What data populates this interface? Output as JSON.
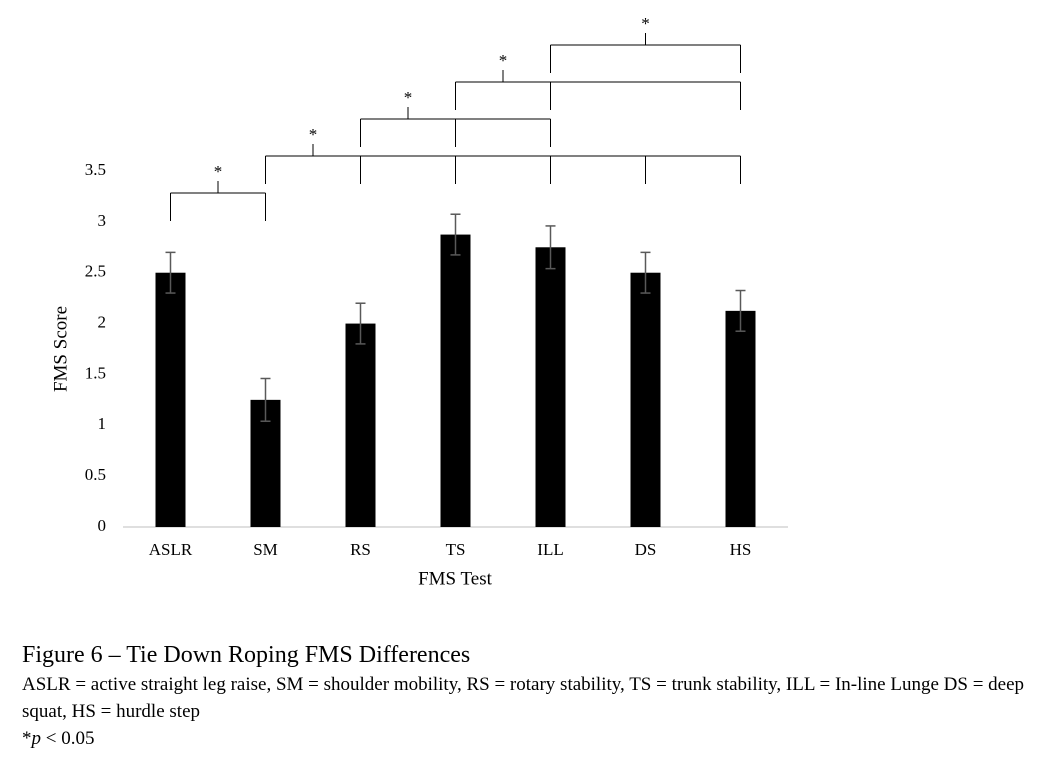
{
  "chart_data": {
    "type": "bar",
    "categories": [
      "ASLR",
      "SM",
      "RS",
      "TS",
      "ILL",
      "DS",
      "HS"
    ],
    "values": [
      2.5,
      1.25,
      2.0,
      2.875,
      2.75,
      2.5,
      2.125
    ],
    "errors": [
      0.2,
      0.21,
      0.2,
      0.2,
      0.21,
      0.2,
      0.2
    ],
    "color": "#000000",
    "error_color": "#595959",
    "ylim": [
      0,
      3.5
    ],
    "yticks": [
      0,
      0.5,
      1,
      1.5,
      2,
      2.5,
      3,
      3.5
    ],
    "grid": false,
    "x_label": "FMS Test",
    "y_label": "FMS Score",
    "significance": [
      {
        "from": 0,
        "to": [
          1
        ],
        "label": "*"
      },
      {
        "from": 1,
        "to": [
          2,
          3,
          4,
          5,
          6
        ],
        "label": "*"
      },
      {
        "from": 2,
        "to": [
          3,
          4
        ],
        "label": "*"
      },
      {
        "from": 3,
        "to": [
          4,
          6
        ],
        "label": "*"
      },
      {
        "from": 4,
        "to": [
          6
        ],
        "label": "*"
      }
    ]
  },
  "caption": {
    "title": "Figure 6 – Tie Down Roping FMS Differences",
    "description": "ASLR = active straight leg raise, SM = shoulder mobility, RS = rotary stability, TS = trunk stability, ILL = In-line Lunge DS = deep squat, HS = hurdle step",
    "note_prefix": "*",
    "note_symbol": "p",
    "note_suffix": "< 0.05"
  }
}
